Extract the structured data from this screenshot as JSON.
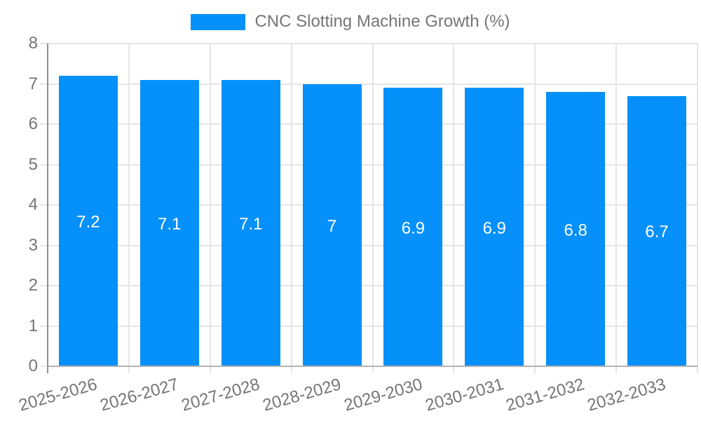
{
  "chart_data": {
    "type": "bar",
    "title": "CNC Slotting Machine Growth (%)",
    "categories": [
      "2025-2026",
      "2026-2027",
      "2027-2028",
      "2028-2029",
      "2029-2030",
      "2030-2031",
      "2031-2032",
      "2032-2033"
    ],
    "series": [
      {
        "name": "CNC Slotting Machine Growth (%)",
        "values": [
          7.2,
          7.1,
          7.1,
          7,
          6.9,
          6.9,
          6.8,
          6.7
        ],
        "value_labels": [
          "7.2",
          "7.1",
          "7.1",
          "7",
          "6.9",
          "6.9",
          "6.8",
          "6.7"
        ]
      }
    ],
    "xlabel": "",
    "ylabel": "",
    "ylim": [
      0,
      8
    ],
    "y_ticks": [
      0,
      1,
      2,
      3,
      4,
      5,
      6,
      7,
      8
    ],
    "grid": true,
    "legend_position": "top",
    "x_tick_rotation_deg": -16,
    "colors": {
      "bar": "#0590fa",
      "value_label": "#ffffff",
      "axis_text": "#757575",
      "legend_text": "#757575",
      "gridline": "#e5e5e5",
      "y_axis_line": "#8f8f8f",
      "x_axis_line": "#b3b3b3",
      "background": "#ffffff"
    }
  }
}
